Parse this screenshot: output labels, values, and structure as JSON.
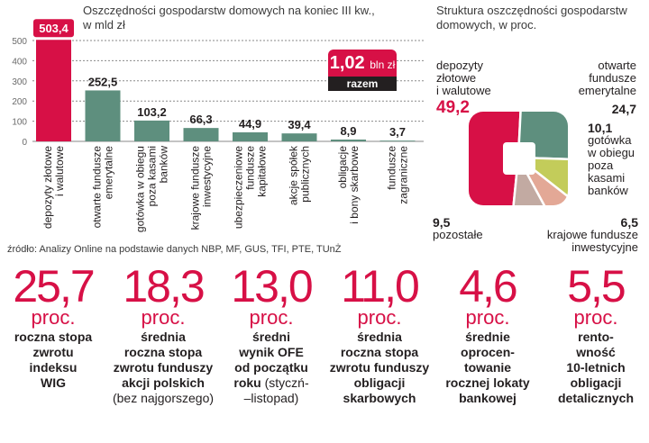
{
  "bar_chart": {
    "title": "Oszczędności gospodarstw domowych na koniec III kw., w mld zł",
    "total_value": "1,02",
    "total_unit": "bln zł",
    "total_label": "razem",
    "colors": {
      "highlight": "#d71046",
      "bars": "#5e8f7e",
      "grid": "#8a8a8a"
    }
  },
  "chart_data": [
    {
      "type": "bar",
      "title": "Oszczędności gospodarstw domowych na koniec III kw., w mld zł",
      "xlabel": "",
      "ylabel": "",
      "ylim": [
        0,
        550
      ],
      "yticks": [
        0,
        100,
        200,
        300,
        400,
        500
      ],
      "grid": true,
      "categories": [
        [
          "depozyty złotowe",
          "i walutowe"
        ],
        [
          "otwarte fundusze",
          "emerytalne"
        ],
        [
          "gotówka w obiegu",
          "poza kasami",
          "banków"
        ],
        [
          "krajowe fundusze",
          "inwestycyjne"
        ],
        [
          "ubezpieczeniowe",
          "fundusze",
          "kapitałowe"
        ],
        [
          "akcje spółek",
          "publicznych"
        ],
        [
          "obligacje",
          "i bony skarbowe"
        ],
        [
          "fundusze",
          "zagraniczne"
        ]
      ],
      "values": [
        503.4,
        252.5,
        103.2,
        66.3,
        44.9,
        39.4,
        8.9,
        3.7
      ],
      "value_labels": [
        "503,4",
        "252,5",
        "103,2",
        "66,3",
        "44,9",
        "39,4",
        "8,9",
        "3,7"
      ]
    },
    {
      "type": "pie",
      "title": "Struktura oszczędności gospodarstw domowych, w proc.",
      "slices": [
        {
          "label": "depozyty złotowe i walutowe",
          "value": 49.2,
          "value_label": "49,2",
          "color": "#d71046"
        },
        {
          "label": "otwarte fundusze emerytalne",
          "value": 24.7,
          "value_label": "24,7",
          "color": "#5e8f7e"
        },
        {
          "label": "gotówka w obiegu poza kasami banków",
          "value": 10.1,
          "value_label": "10,1",
          "color": "#c3cc5a"
        },
        {
          "label": "krajowe fundusze inwestycyjne",
          "value": 6.5,
          "value_label": "6,5",
          "color": "#e3a896"
        },
        {
          "label": "pozostałe",
          "value": 9.5,
          "value_label": "9,5",
          "color": "#c2aaa2"
        }
      ]
    }
  ],
  "pie_labels": {
    "deposits": [
      "depozyty",
      "złotowe",
      "i walutowe"
    ],
    "ofe": [
      "otwarte",
      "fundusze",
      "emerytalne"
    ],
    "cash": [
      "gotówka",
      "w obiegu",
      "poza",
      "kasami",
      "banków"
    ],
    "funds": [
      "krajowe fundusze",
      "inwestycyjne"
    ],
    "other": [
      "pozostałe"
    ]
  },
  "source": "źródło: Analizy Online na podstawie danych NBP, MF, GUS, TFI, PTE, TUnŻ",
  "stats": [
    {
      "value": "25,7",
      "unit": "proc.",
      "lines": [
        "roczna stopa",
        "zwrotu",
        "indeksu",
        "WIG"
      ],
      "plain": []
    },
    {
      "value": "18,3",
      "unit": "proc.",
      "lines": [
        "średnia",
        "roczna stopa",
        "zwrotu funduszy",
        "akcji polskich"
      ],
      "plain": [
        "(bez najgorszego)"
      ]
    },
    {
      "value": "13,0",
      "unit": "proc.",
      "lines": [
        "średni",
        "wynik OFE",
        "od początku"
      ],
      "mixed": [
        "roku",
        " (styczń-",
        "–listopad)"
      ]
    },
    {
      "value": "11,0",
      "unit": "proc.",
      "lines": [
        "średnia",
        "roczna stopa",
        "zwrotu funduszy",
        "obligacji",
        "skarbowych"
      ],
      "plain": []
    },
    {
      "value": "4,6",
      "unit": "proc.",
      "lines": [
        "średnie",
        "oprocen-",
        "towanie",
        "rocznej lokaty",
        "bankowej"
      ],
      "plain": []
    },
    {
      "value": "5,5",
      "unit": "proc.",
      "lines": [
        "rento-",
        "wność",
        "10-letnich",
        "obligacji",
        "detalicznych"
      ],
      "plain": []
    }
  ]
}
